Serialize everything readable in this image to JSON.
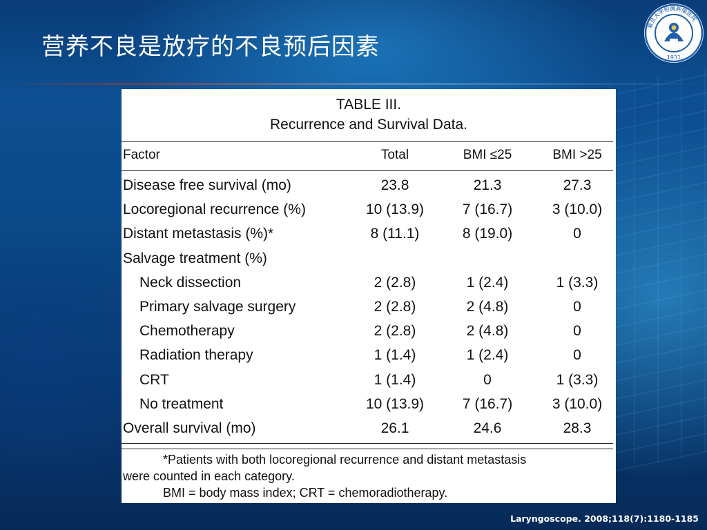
{
  "slide": {
    "title": "营养不良是放疗的不良预后因素",
    "citation": "Laryngoscope. 2008;118(7):1180-1185"
  },
  "logo": {
    "icon": "university-hospital-seal-icon",
    "year": "1931",
    "ring_text": "复旦大学附属肿瘤医院",
    "colors": {
      "ring": "#1f5fae",
      "inner": "#ffffff",
      "emblem": "#1f5fae",
      "accent": "#e8c84a"
    }
  },
  "table": {
    "label": "TABLE III.",
    "caption": "Recurrence and Survival Data.",
    "headers": [
      "Factor",
      "Total",
      "BMI ≤25",
      "BMI >25"
    ],
    "rows": [
      {
        "factor": "Disease free survival (mo)",
        "total": "23.8",
        "bmi_le25": "21.3",
        "bmi_gt25": "27.3"
      },
      {
        "factor": "Locoregional recurrence (%)",
        "total": "10 (13.9)",
        "bmi_le25": "7 (16.7)",
        "bmi_gt25": "3 (10.0)"
      },
      {
        "factor": "Distant metastasis (%)*",
        "total": "8 (11.1)",
        "bmi_le25": "8 (19.0)",
        "bmi_gt25": "0"
      },
      {
        "factor": "Salvage treatment (%)",
        "total": "",
        "bmi_le25": "",
        "bmi_gt25": ""
      },
      {
        "factor": "Neck dissection",
        "total": "2 (2.8)",
        "bmi_le25": "1 (2.4)",
        "bmi_gt25": "1 (3.3)"
      },
      {
        "factor": "Primary salvage surgery",
        "total": "2 (2.8)",
        "bmi_le25": "2 (4.8)",
        "bmi_gt25": "0"
      },
      {
        "factor": "Chemotherapy",
        "total": "2 (2.8)",
        "bmi_le25": "2 (4.8)",
        "bmi_gt25": "0"
      },
      {
        "factor": "Radiation therapy",
        "total": "1 (1.4)",
        "bmi_le25": "1 (2.4)",
        "bmi_gt25": "0"
      },
      {
        "factor": "CRT",
        "total": "1 (1.4)",
        "bmi_le25": "0",
        "bmi_gt25": "1 (3.3)"
      },
      {
        "factor": "No treatment",
        "total": "10 (13.9)",
        "bmi_le25": "7 (16.7)",
        "bmi_gt25": "3 (10.0)"
      },
      {
        "factor": "Overall survival (mo)",
        "total": "26.1",
        "bmi_le25": "24.6",
        "bmi_gt25": "28.3"
      }
    ],
    "footnotes": [
      "*Patients with both locoregional recurrence and distant metastasis",
      "were counted in each category.",
      "BMI = body mass index; CRT = chemoradiotherapy."
    ]
  }
}
